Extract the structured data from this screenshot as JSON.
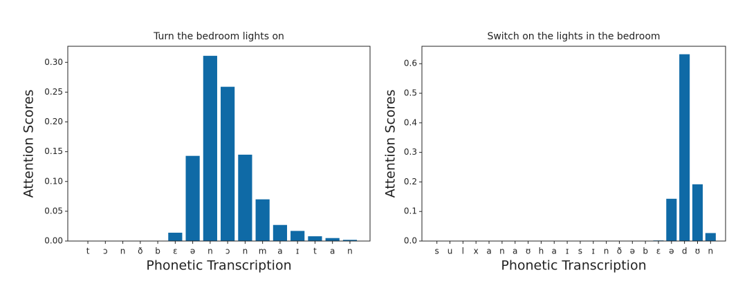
{
  "chart_data": [
    {
      "type": "bar",
      "title": "Turn the bedroom lights on",
      "xlabel": "Phonetic Transcription",
      "ylabel": "Attention Scores",
      "categories": [
        "t",
        "ɔ",
        "n",
        "ð",
        "b",
        "ɛ",
        "ə",
        "n",
        "ɔ",
        "n",
        "m",
        "a",
        "ɪ",
        "t",
        "a",
        "n"
      ],
      "values": [
        0,
        0,
        0,
        0,
        0,
        0.014,
        0.143,
        0.311,
        0.259,
        0.145,
        0.07,
        0.027,
        0.017,
        0.008,
        0.005,
        0.002
      ],
      "color": "#0f6aa6",
      "ylim": [
        0,
        0.327
      ],
      "yticks": [
        {
          "value": 0,
          "label": "0.00"
        },
        0.05,
        {
          "value": 0.1,
          "label": "0.10"
        },
        0.15,
        {
          "value": 0.2,
          "label": "0.20"
        },
        0.25,
        {
          "value": 0.3,
          "label": "0.30"
        }
      ]
    },
    {
      "type": "bar",
      "title": "Switch on the lights in the bedroom",
      "xlabel": "Phonetic Transcription",
      "ylabel": "Attention Scores",
      "categories": [
        "s",
        "u",
        "l",
        "x",
        "a",
        "n",
        "a",
        "ʊ",
        "h",
        "a",
        "ɪ",
        "s",
        "ɪ",
        "n",
        "ð",
        "ə",
        "b",
        "ɛ",
        "ə",
        "d",
        "ʊ",
        "n"
      ],
      "values": [
        0,
        0,
        0,
        0,
        0,
        0,
        0,
        0,
        0,
        0,
        0,
        0,
        0,
        0,
        0,
        0,
        0,
        0.002,
        0.143,
        0.632,
        0.192,
        0.027
      ],
      "color": "#0f6aa6",
      "ylim": [
        0,
        0.659
      ],
      "yticks": [
        {
          "value": 0,
          "label": "0.0"
        },
        0.1,
        0.2,
        0.3,
        0.4,
        0.5,
        0.6
      ]
    }
  ]
}
